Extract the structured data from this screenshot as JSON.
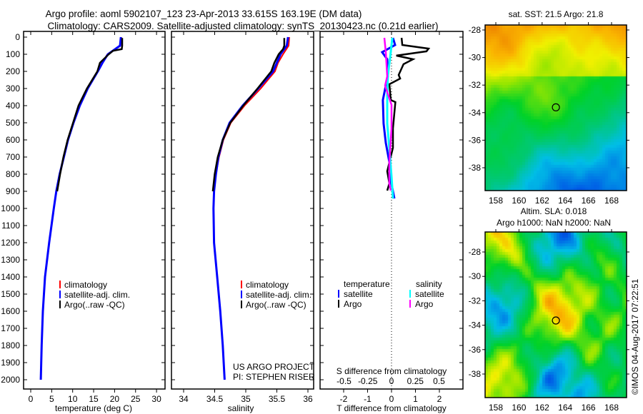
{
  "title": {
    "line1": "Argo profile: aoml 5902107_123 23-Apr-2013 33.615S 163.19E (DM data)",
    "line2": "Climatology: CARS2009. Satellite-adjusted climatology: synTS_20130423.nc (0.21d earlier)"
  },
  "colors": {
    "climatology": "#ff0000",
    "satellite": "#0000ff",
    "argo": "#000000",
    "sal_satellite": "#00ffff",
    "sal_argo": "#ff00ff"
  },
  "chart_data": [
    {
      "id": "temperature",
      "type": "line",
      "xlabel": "temperature (deg C)",
      "ylabel": "",
      "xlim": [
        -2,
        32
      ],
      "ylim": [
        2000,
        0
      ],
      "xticks": [
        "0",
        "5",
        "10",
        "15",
        "20",
        "25",
        "30"
      ],
      "xtick_values": [
        0,
        5,
        10,
        15,
        20,
        25,
        30
      ],
      "yticks": [
        "0",
        "100",
        "200",
        "300",
        "400",
        "500",
        "600",
        "700",
        "800",
        "900",
        "1000",
        "1100",
        "1200",
        "1300",
        "1400",
        "1500",
        "1600",
        "1700",
        "1800",
        "1900",
        "2000"
      ],
      "legend": [
        "climatology",
        "satellite-adj. clim.",
        "Argo(..raw -QC)"
      ],
      "series": [
        {
          "name": "climatology",
          "depth": [
            0,
            50,
            100,
            150,
            200,
            300,
            400,
            500,
            600,
            700,
            800,
            900,
            1000,
            1200,
            1400,
            1600,
            1800,
            2000
          ],
          "values": [
            21.6,
            21.4,
            18.3,
            17.0,
            15.9,
            13.5,
            11.6,
            10.1,
            8.8,
            7.8,
            6.9,
            6.1,
            5.5,
            4.4,
            3.4,
            2.9,
            2.6,
            2.4
          ]
        },
        {
          "name": "satellite-adj. clim.",
          "depth": [
            0,
            50,
            100,
            150,
            200,
            300,
            400,
            500,
            600,
            700,
            800,
            900,
            1000,
            1200,
            1400,
            1600,
            1800,
            2000
          ],
          "values": [
            21.5,
            21.3,
            18.4,
            17.1,
            16.0,
            13.6,
            11.7,
            10.2,
            8.9,
            7.9,
            6.9,
            6.1,
            5.5,
            4.4,
            3.4,
            2.9,
            2.6,
            2.4
          ]
        },
        {
          "name": "Argo(..raw -QC)",
          "depth": [
            5,
            50,
            70,
            80,
            100,
            150,
            200,
            300,
            400,
            500,
            600,
            700,
            800,
            900
          ],
          "values": [
            21.8,
            21.8,
            21.7,
            19.6,
            18.6,
            16.5,
            15.9,
            13.4,
            11.4,
            10.1,
            8.8,
            7.8,
            7.0,
            6.3
          ]
        }
      ]
    },
    {
      "id": "salinity",
      "type": "line",
      "xlabel": "salinity",
      "xlim": [
        33.8,
        36.1
      ],
      "ylim": [
        2000,
        0
      ],
      "xticks": [
        "34",
        "34.5",
        "35",
        "35.5",
        "36"
      ],
      "xtick_values": [
        34,
        34.5,
        35,
        35.5,
        36
      ],
      "legend": [
        "climatology",
        "satellite-adj. clim.",
        "Argo(..raw -QC)"
      ],
      "annotation": [
        "US ARGO PROJECT",
        "PI: STEPHEN RISER"
      ],
      "series": [
        {
          "name": "climatology",
          "depth": [
            0,
            50,
            100,
            150,
            200,
            300,
            400,
            500,
            600,
            700,
            800,
            900,
            1000,
            1200,
            1400,
            1600,
            1800,
            2000
          ],
          "values": [
            35.7,
            35.69,
            35.6,
            35.52,
            35.47,
            35.24,
            34.98,
            34.76,
            34.64,
            34.57,
            34.52,
            34.49,
            34.48,
            34.49,
            34.54,
            34.59,
            34.63,
            34.66
          ]
        },
        {
          "name": "satellite-adj. clim.",
          "depth": [
            0,
            50,
            100,
            150,
            200,
            300,
            400,
            500,
            600,
            700,
            800,
            900,
            1000,
            1200,
            1400,
            1600,
            1800,
            2000
          ],
          "values": [
            35.68,
            35.66,
            35.56,
            35.5,
            35.44,
            35.2,
            34.95,
            34.74,
            34.63,
            34.56,
            34.52,
            34.49,
            34.48,
            34.49,
            34.54,
            34.59,
            34.63,
            34.66
          ]
        },
        {
          "name": "Argo(..raw -QC)",
          "depth": [
            5,
            50,
            70,
            100,
            150,
            200,
            300,
            400,
            500,
            600,
            700,
            800,
            900
          ],
          "values": [
            35.62,
            35.62,
            35.6,
            35.53,
            35.46,
            35.41,
            35.19,
            34.96,
            34.75,
            34.63,
            34.55,
            34.5,
            34.47
          ]
        }
      ]
    },
    {
      "id": "difference",
      "type": "line",
      "xlabel": "T difference from climatology",
      "x2label": "S difference from climatology",
      "xlim": [
        -3,
        3
      ],
      "x2lim": [
        -0.75,
        0.75
      ],
      "ylim": [
        2000,
        0
      ],
      "xticks": [
        "-2",
        "-1",
        "0",
        "1",
        "2"
      ],
      "xtick_values": [
        -2,
        -1,
        0,
        1,
        2
      ],
      "x2ticks": [
        "-0.5",
        "-0.25",
        "0",
        "0.25",
        "0.5"
      ],
      "x2tick_values": [
        -0.5,
        -0.25,
        0,
        0.25,
        0.5
      ],
      "legend": {
        "temperature_title": "temperature",
        "salinity_title": "salinity",
        "temp_items": [
          "satellite",
          "Argo"
        ],
        "sal_items": [
          "satellite",
          "Argo"
        ]
      },
      "series": [
        {
          "name": "T satellite",
          "axis": "T",
          "depth": [
            4,
            46,
            88,
            129,
            229,
            283,
            367,
            504,
            617,
            729,
            838,
            942
          ],
          "values": [
            0.06,
            0.15,
            -0.39,
            -0.18,
            -0.15,
            -0.24,
            -0.36,
            -0.33,
            -0.24,
            -0.09,
            -0.03,
            0.12
          ]
        },
        {
          "name": "T Argo",
          "axis": "T",
          "depth": [
            4,
            46,
            67,
            83,
            108,
            129,
            158,
            221,
            242,
            275,
            367,
            379,
            533,
            646,
            783,
            854,
            896
          ],
          "values": [
            0.42,
            0.45,
            1.55,
            1.46,
            0.2,
            0.9,
            0.5,
            0.3,
            0.36,
            -0.09,
            -0.03,
            0.16,
            0.06,
            0.06,
            -0.18,
            -0.09,
            -0.18
          ]
        },
        {
          "name": "S satellite",
          "axis": "S",
          "depth": [
            4,
            88,
            229,
            338,
            504,
            646,
            813,
            942
          ],
          "values": [
            0.008,
            -0.008,
            -0.038,
            -0.045,
            -0.045,
            -0.023,
            0.0,
            0.015
          ]
        },
        {
          "name": "S Argo",
          "axis": "S",
          "depth": [
            4,
            88,
            229,
            283,
            396,
            533,
            729,
            854,
            896
          ],
          "values": [
            -0.075,
            -0.06,
            -0.045,
            -0.068,
            0.0,
            0.0,
            -0.023,
            -0.023,
            -0.008
          ]
        }
      ]
    },
    {
      "id": "sst_map",
      "type": "heatmap",
      "title": "sat. SST: 21.5 Argo: 21.8",
      "xticks": [
        "158",
        "160",
        "162",
        "164",
        "166",
        "168"
      ],
      "xtick_values": [
        158,
        160,
        162,
        164,
        166,
        168
      ],
      "yticks": [
        "-28",
        "-30",
        "-32",
        "-34",
        "-36",
        "-38"
      ],
      "ytick_values": [
        -28,
        -30,
        -32,
        -34,
        -36,
        -38
      ],
      "xlim": [
        157,
        169.4
      ],
      "ylim": [
        -39.6,
        -27.7
      ],
      "marker": {
        "lon": 163.19,
        "lat": -33.615
      }
    },
    {
      "id": "sla_map",
      "type": "heatmap",
      "title": "Altim. SLA: 0.018",
      "subtitle": "Argo h1000: NaN h2000: NaN",
      "xticks": [
        "158",
        "160",
        "162",
        "164",
        "166",
        "168"
      ],
      "xtick_values": [
        158,
        160,
        162,
        164,
        166,
        168
      ],
      "yticks": [
        "-28",
        "-30",
        "-32",
        "-34",
        "-36",
        "-38"
      ],
      "ytick_values": [
        -28,
        -30,
        -32,
        -34,
        -36,
        -38
      ],
      "xlim": [
        157,
        169.4
      ],
      "ylim": [
        -39.6,
        -27.4
      ],
      "marker": {
        "lon": 163.19,
        "lat": -33.615
      }
    }
  ],
  "credit": "©IMOS 04-Aug-2017 07:22:51"
}
